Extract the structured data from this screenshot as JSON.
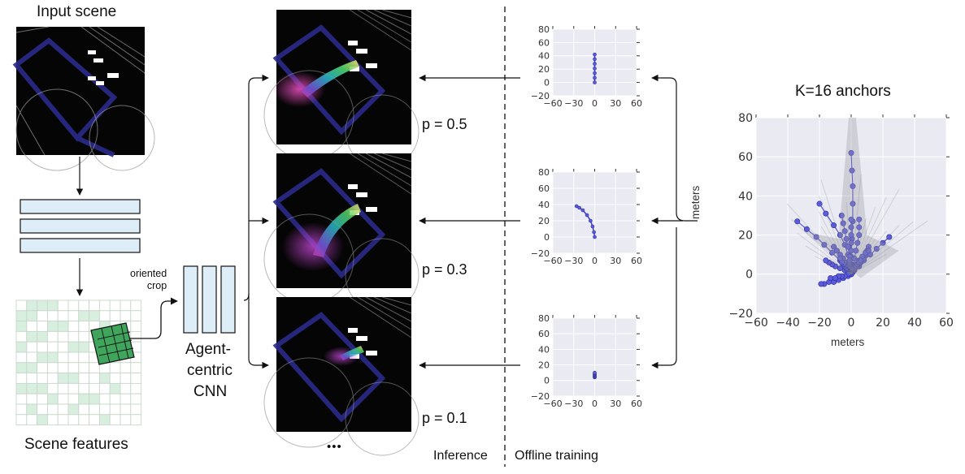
{
  "labels": {
    "input_scene": "Input scene",
    "scene_features": "Scene features",
    "oriented_crop": "oriented\ncrop",
    "cnn_line1": "Agent-",
    "cnn_line2": "centric",
    "cnn_line3": "CNN",
    "ellipsis": "•••",
    "inference": "Inference",
    "offline_training": "Offline training",
    "anchors_title": "K=16 anchors"
  },
  "outputs": [
    {
      "probability": "p = 0.5"
    },
    {
      "probability": "p = 0.3"
    },
    {
      "probability": "p = 0.1"
    }
  ],
  "colors": {
    "feature_bar": "#ddeef8",
    "grid_fill": "#d8efdf",
    "plot_bg": "#eaeaf2",
    "trajectory": "#3b3bd6",
    "anchor_point": "#5b5be0"
  },
  "chart_data": [
    {
      "type": "line",
      "xlim": [
        -60,
        60
      ],
      "ylim": [
        -20,
        80
      ],
      "xticks": [
        "−60",
        "−30",
        "0",
        "30",
        "60"
      ],
      "yticks": [
        "−20",
        "0",
        "20",
        "40",
        "60",
        "80"
      ],
      "series": [
        {
          "x": [
            0,
            0,
            0,
            0,
            0,
            0,
            0
          ],
          "y": [
            0,
            7,
            14,
            21,
            28,
            35,
            42
          ]
        }
      ]
    },
    {
      "type": "line",
      "xlim": [
        -60,
        60
      ],
      "ylim": [
        -20,
        80
      ],
      "xticks": [
        "−60",
        "−30",
        "0",
        "30",
        "60"
      ],
      "yticks": [
        "−20",
        "0",
        "20",
        "40",
        "60",
        "80"
      ],
      "series": [
        {
          "x": [
            0,
            -1,
            -3,
            -6,
            -11,
            -17,
            -22,
            -26
          ],
          "y": [
            0,
            6,
            13,
            20,
            27,
            33,
            36,
            38
          ]
        }
      ]
    },
    {
      "type": "line",
      "xlim": [
        -60,
        60
      ],
      "ylim": [
        -20,
        80
      ],
      "xticks": [
        "−60",
        "−30",
        "0",
        "30",
        "60"
      ],
      "yticks": [
        "−20",
        "0",
        "20",
        "40",
        "60",
        "80"
      ],
      "series": [
        {
          "x": [
            0,
            0,
            0,
            0,
            0,
            0,
            0
          ],
          "y": [
            4,
            5,
            6,
            7,
            8,
            9,
            10
          ]
        }
      ]
    },
    {
      "type": "line",
      "title": "K=16 anchors",
      "xlabel": "meters",
      "ylabel": "meters",
      "xlim": [
        -60,
        60
      ],
      "ylim": [
        -20,
        80
      ],
      "xticks": [
        "−60",
        "−40",
        "−20",
        "0",
        "20",
        "40",
        "60"
      ],
      "yticks": [
        "−20",
        "0",
        "20",
        "40",
        "60",
        "80"
      ],
      "series": [
        {
          "x": [
            0,
            0,
            0.5,
            1,
            1,
            1,
            0.5,
            0
          ],
          "y": [
            0,
            9,
            18,
            27,
            36,
            45,
            53,
            62
          ]
        },
        {
          "x": [
            0,
            0,
            0,
            0,
            0,
            0,
            0,
            0
          ],
          "y": [
            0,
            4,
            8,
            12,
            16,
            20,
            24,
            28
          ]
        },
        {
          "x": [
            0,
            -1,
            -2,
            -4,
            -7,
            -11,
            -16,
            -20
          ],
          "y": [
            0,
            5,
            10,
            15,
            20,
            25,
            31,
            36
          ]
        },
        {
          "x": [
            0,
            -3,
            -7,
            -12,
            -17,
            -22,
            -28,
            -34
          ],
          "y": [
            0,
            3,
            7,
            11,
            15,
            19,
            23,
            27
          ]
        },
        {
          "x": [
            0,
            2,
            5,
            8,
            12,
            16,
            20,
            24
          ],
          "y": [
            0,
            2,
            4,
            7,
            10,
            13,
            16,
            19
          ]
        },
        {
          "x": [
            0,
            -2,
            -5,
            -8,
            -11,
            -14,
            -17,
            -19
          ],
          "y": [
            0,
            -1,
            -2,
            -3,
            -4,
            -4,
            -5,
            -5
          ]
        },
        {
          "x": [
            0,
            -2,
            -4,
            -7,
            -10,
            -12,
            -14,
            -16
          ],
          "y": [
            0,
            1,
            2,
            3,
            4,
            5,
            6,
            7
          ]
        },
        {
          "x": [
            0,
            2,
            4,
            6,
            8,
            9,
            10,
            11
          ],
          "y": [
            0,
            2,
            4,
            6,
            8,
            10,
            12,
            14
          ]
        },
        {
          "x": [
            0,
            0,
            -1,
            -2,
            -3,
            -4,
            -5,
            -6
          ],
          "y": [
            0,
            5,
            9,
            14,
            18,
            22,
            26,
            30
          ]
        },
        {
          "x": [
            0,
            1,
            2,
            3,
            4,
            5,
            5,
            5
          ],
          "y": [
            0,
            4,
            8,
            12,
            16,
            20,
            24,
            28
          ]
        },
        {
          "x": [
            0,
            -1,
            -2,
            -3,
            -5,
            -7,
            -9,
            -11
          ],
          "y": [
            0,
            2,
            4,
            6,
            8,
            10,
            12,
            14
          ]
        },
        {
          "x": [
            0,
            1,
            2,
            3,
            5,
            7,
            9,
            11
          ],
          "y": [
            0,
            1,
            3,
            5,
            7,
            9,
            11,
            12
          ]
        },
        {
          "x": [
            0,
            -1,
            -2,
            -3,
            -4,
            -5,
            -6,
            -7
          ],
          "y": [
            0,
            1,
            2,
            3,
            4,
            5,
            6,
            8
          ]
        },
        {
          "x": [
            0,
            1,
            1,
            2,
            3,
            4,
            5,
            6
          ],
          "y": [
            0,
            1,
            2,
            3,
            4,
            5,
            6,
            7
          ]
        },
        {
          "x": [
            0,
            0,
            0,
            0,
            -1,
            -1,
            -1,
            -1
          ],
          "y": [
            0,
            1,
            2,
            3,
            4,
            5,
            6,
            7
          ]
        },
        {
          "x": [
            0,
            -1,
            -2,
            -4,
            -6,
            -8,
            -10,
            -13
          ],
          "y": [
            0,
            0,
            0,
            -1,
            -1,
            -1,
            -2,
            -2
          ]
        }
      ]
    }
  ]
}
